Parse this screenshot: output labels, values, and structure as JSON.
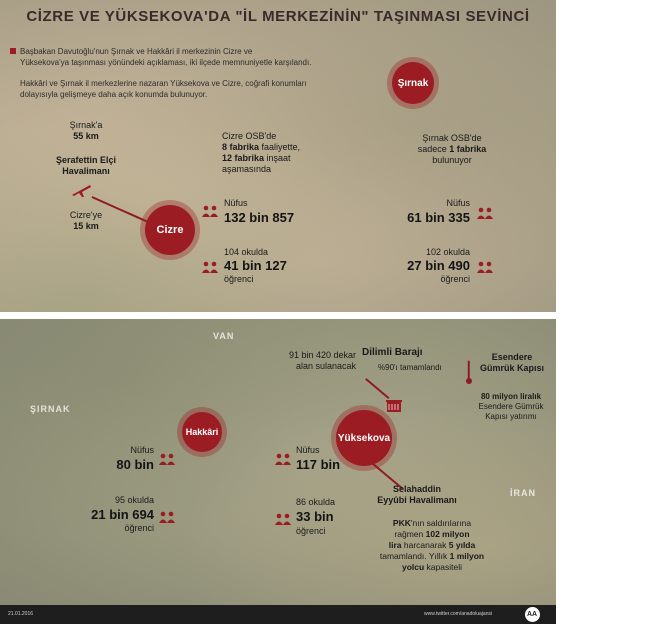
{
  "title": "CİZRE VE YÜKSEKOVA'DA \"İL MERKEZİNİN\" TAŞINMASI SEVİNCİ",
  "intro": {
    "paragraph1_line1": "Başbakan Davutoğlu'nun Şırnak ve Hakkâri il merkezinin Cizre ve",
    "paragraph1_line2": "Yüksekova'ya taşınması yönündeki açıklaması, iki ilçede memnuniyetle karşılandı.",
    "paragraph2_line1": "Hakkâri ve Şırnak il merkezlerine nazaran Yüksekova ve Cizre, coğrafi konumları",
    "paragraph2_line2": "dolayısıyla gelişmeye daha açık konumda bulunuyor."
  },
  "top": {
    "sirnak_label": "Şırnak",
    "cizre_label": "Cizre",
    "airport": {
      "dist_sirnak_line1": "Şırnak'a",
      "dist_sirnak_line2": "55 km",
      "name_line1": "Şerafettin Elçi",
      "name_line2": "Havalimanı",
      "dist_cizre_line1": "Cizre'ye",
      "dist_cizre_line2": "15 km"
    },
    "cizre_osb": {
      "line1": "Cizre OSB'de",
      "line2_bold": "8 fabrika",
      "line2_rest": " faaliyette,",
      "line3_bold": "12 fabrika",
      "line3_rest": " inşaat",
      "line4": "aşamasında"
    },
    "cizre_pop_label": "Nüfus",
    "cizre_pop_value": "132 bin 857",
    "cizre_school_label": "104 okulda",
    "cizre_school_value": "41 bin 127",
    "cizre_student_label": "öğrenci",
    "sirnak_osb": {
      "line1": "Şırnak OSB'de",
      "line2_pre": "sadece ",
      "line2_bold": "1 fabrika",
      "line3": "bulunuyor"
    },
    "sirnak_pop_label": "Nüfus",
    "sirnak_pop_value": "61 bin 335",
    "sirnak_school_label": "102 okulda",
    "sirnak_school_value": "27 bin 490",
    "sirnak_student_label": "öğrenci"
  },
  "bottom": {
    "map_labels": {
      "van": "VAN",
      "sirnak": "ŞIRNAK",
      "iran": "İRAN"
    },
    "hakkari_label": "Hakkâri",
    "yuksekova_label": "Yüksekova",
    "hakkari_pop_label": "Nüfus",
    "hakkari_pop_value": "80 bin",
    "hakkari_school_label": "95 okulda",
    "hakkari_school_value": "21 bin 694",
    "hakkari_student_label": "öğrenci",
    "yuksekova_pop_label": "Nüfus",
    "yuksekova_pop_value": "117 bin",
    "yuksekova_school_label": "86 okulda",
    "yuksekova_school_value": "33 bin",
    "yuksekova_student_label": "öğrenci",
    "dam": {
      "area_line1": "91 bin 420 dekar",
      "area_line2": "alan sulanacak",
      "name": "Dilimli Barajı",
      "status": "%90'ı tamamlandı"
    },
    "customs": {
      "name_line1": "Esendere",
      "name_line2": "Gümrük Kapısı",
      "invest_line1_bold": "80 milyon liralık",
      "invest_line2": "Esendere Gümrük",
      "invest_line3": "Kapısı yatırımı"
    },
    "airport": {
      "name_line1": "Selahaddin",
      "name_line2": "Eyyûbi Havalimanı"
    },
    "pkk": {
      "line1_bold": "PKK",
      "line1_rest": "'nın saldırılarına",
      "line2_pre": "rağmen ",
      "line2_bold": "102 milyon",
      "line3_bold": "lira",
      "line3_mid": " harcanarak ",
      "line3_bold2": "5 yılda",
      "line4_pre": "tamamlandı. Yıllık ",
      "line4_bold": "1 milyon",
      "line5_bold": "yolcu",
      "line5_rest": " kapasiteli"
    }
  },
  "footer": {
    "date": "21.01.2016",
    "handle": "www.twitter.com/anadoluajansi",
    "logo_text": "AA"
  },
  "colors": {
    "accent": "#9b1c22",
    "footer_bg": "#1e1e1e"
  }
}
